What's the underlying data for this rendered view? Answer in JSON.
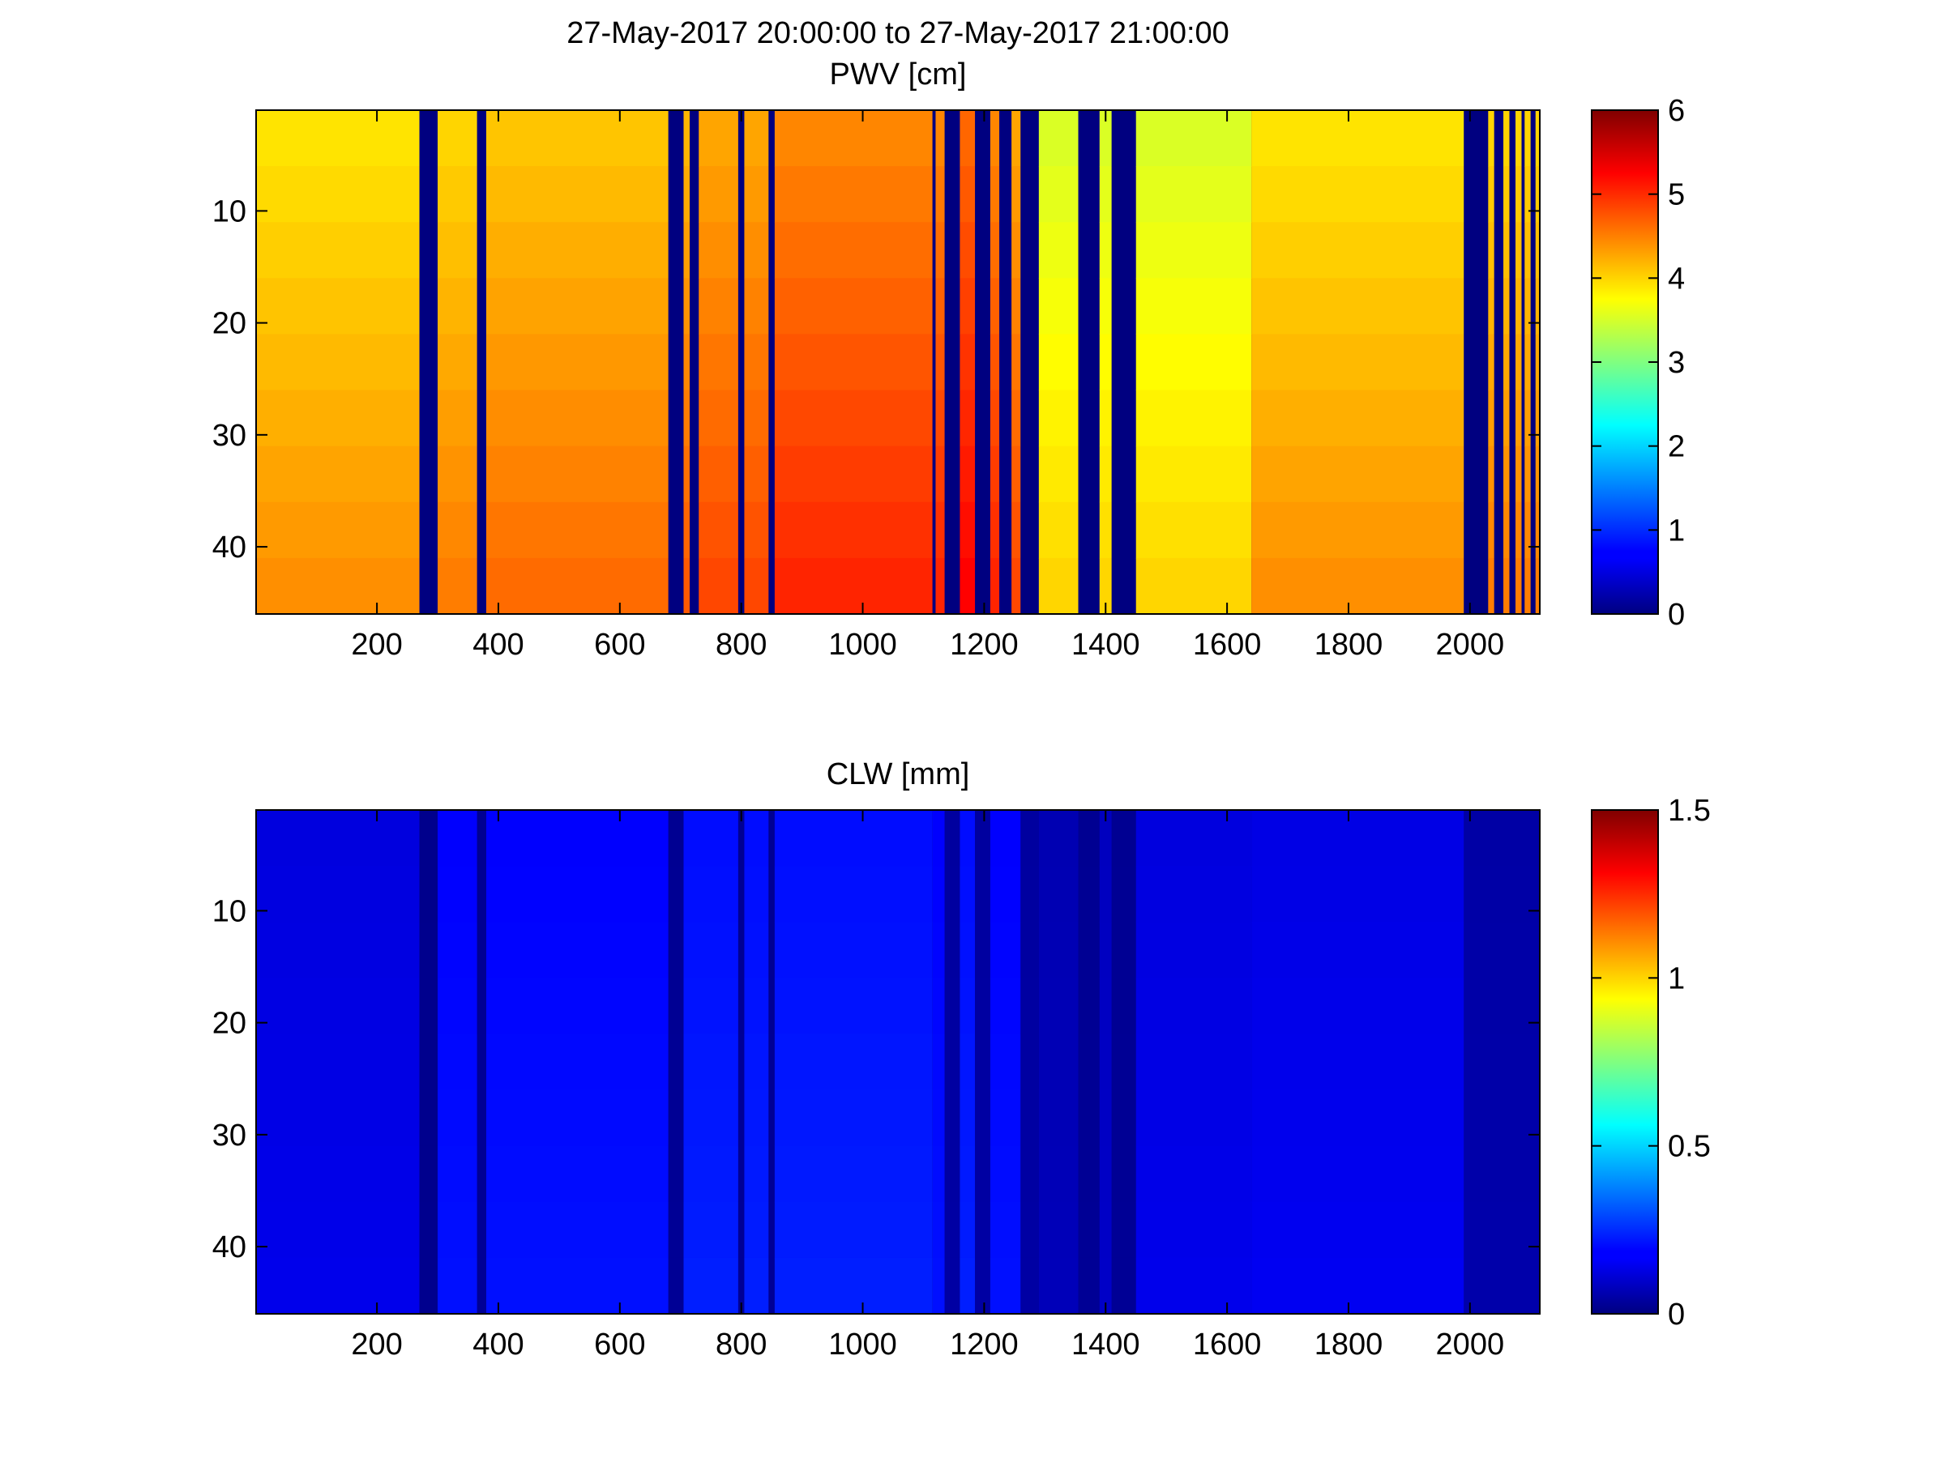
{
  "figure": {
    "title": "27-May-2017 20:00:00 to 27-May-2017 21:00:00"
  },
  "chart_data": [
    {
      "type": "heatmap",
      "title": "PWV [cm]",
      "xlabel": "",
      "ylabel": "",
      "xlim": [
        1,
        2115
      ],
      "ylim": [
        1,
        46
      ],
      "y_reversed": true,
      "x_ticks": [
        200,
        400,
        600,
        800,
        1000,
        1200,
        1400,
        1600,
        1800,
        2000
      ],
      "y_ticks": [
        10,
        20,
        30,
        40
      ],
      "colorbar": {
        "colormap": "jet",
        "range": [
          0,
          6
        ],
        "ticks": [
          0,
          1,
          2,
          3,
          4,
          5,
          6
        ]
      },
      "column_profile": [
        {
          "x_start": 1,
          "x_end": 270,
          "value": 4.2
        },
        {
          "x_start": 270,
          "x_end": 300,
          "value": 0
        },
        {
          "x_start": 300,
          "x_end": 365,
          "value": 4.3
        },
        {
          "x_start": 365,
          "x_end": 380,
          "value": 0
        },
        {
          "x_start": 380,
          "x_end": 680,
          "value": 4.4
        },
        {
          "x_start": 680,
          "x_end": 705,
          "value": 0
        },
        {
          "x_start": 705,
          "x_end": 715,
          "value": 4.5
        },
        {
          "x_start": 715,
          "x_end": 730,
          "value": 0
        },
        {
          "x_start": 730,
          "x_end": 795,
          "value": 4.6
        },
        {
          "x_start": 795,
          "x_end": 805,
          "value": 0
        },
        {
          "x_start": 805,
          "x_end": 845,
          "value": 4.6
        },
        {
          "x_start": 845,
          "x_end": 855,
          "value": 0
        },
        {
          "x_start": 855,
          "x_end": 1115,
          "value": 4.8
        },
        {
          "x_start": 1115,
          "x_end": 1120,
          "value": 0
        },
        {
          "x_start": 1120,
          "x_end": 1135,
          "value": 4.8
        },
        {
          "x_start": 1135,
          "x_end": 1160,
          "value": 0
        },
        {
          "x_start": 1160,
          "x_end": 1185,
          "value": 5.0
        },
        {
          "x_start": 1185,
          "x_end": 1210,
          "value": 0
        },
        {
          "x_start": 1210,
          "x_end": 1225,
          "value": 4.8
        },
        {
          "x_start": 1225,
          "x_end": 1245,
          "value": 0
        },
        {
          "x_start": 1245,
          "x_end": 1260,
          "value": 4.6
        },
        {
          "x_start": 1260,
          "x_end": 1290,
          "value": 0
        },
        {
          "x_start": 1290,
          "x_end": 1355,
          "value": 3.8
        },
        {
          "x_start": 1355,
          "x_end": 1390,
          "value": 0
        },
        {
          "x_start": 1390,
          "x_end": 1410,
          "value": 3.8
        },
        {
          "x_start": 1410,
          "x_end": 1450,
          "value": 0
        },
        {
          "x_start": 1450,
          "x_end": 1640,
          "value": 3.8
        },
        {
          "x_start": 1640,
          "x_end": 1990,
          "value": 4.2
        },
        {
          "x_start": 1990,
          "x_end": 2030,
          "value": 0
        },
        {
          "x_start": 2030,
          "x_end": 2040,
          "value": 4.3
        },
        {
          "x_start": 2040,
          "x_end": 2055,
          "value": 0
        },
        {
          "x_start": 2055,
          "x_end": 2065,
          "value": 4.3
        },
        {
          "x_start": 2065,
          "x_end": 2075,
          "value": 0
        },
        {
          "x_start": 2075,
          "x_end": 2085,
          "value": 4.3
        },
        {
          "x_start": 2085,
          "x_end": 2090,
          "value": 0
        },
        {
          "x_start": 2090,
          "x_end": 2100,
          "value": 4.3
        },
        {
          "x_start": 2100,
          "x_end": 2108,
          "value": 0
        },
        {
          "x_start": 2108,
          "x_end": 2115,
          "value": 4.3
        }
      ]
    },
    {
      "type": "heatmap",
      "title": "CLW [mm]",
      "xlabel": "",
      "ylabel": "",
      "xlim": [
        1,
        2115
      ],
      "ylim": [
        1,
        46
      ],
      "y_reversed": true,
      "x_ticks": [
        200,
        400,
        600,
        800,
        1000,
        1200,
        1400,
        1600,
        1800,
        2000
      ],
      "y_ticks": [
        10,
        20,
        30,
        40
      ],
      "colorbar": {
        "colormap": "jet",
        "range": [
          0,
          1.5
        ],
        "ticks": [
          0,
          0.5,
          1,
          1.5
        ],
        "tick_labels": [
          "0",
          "0.5",
          "1",
          "1.5"
        ]
      },
      "column_profile": [
        {
          "x_start": 1,
          "x_end": 270,
          "value": 0.15
        },
        {
          "x_start": 270,
          "x_end": 300,
          "value": 0.02
        },
        {
          "x_start": 300,
          "x_end": 365,
          "value": 0.2
        },
        {
          "x_start": 365,
          "x_end": 380,
          "value": 0.03
        },
        {
          "x_start": 380,
          "x_end": 680,
          "value": 0.2
        },
        {
          "x_start": 680,
          "x_end": 705,
          "value": 0.03
        },
        {
          "x_start": 705,
          "x_end": 795,
          "value": 0.22
        },
        {
          "x_start": 795,
          "x_end": 805,
          "value": 0.03
        },
        {
          "x_start": 805,
          "x_end": 845,
          "value": 0.22
        },
        {
          "x_start": 845,
          "x_end": 855,
          "value": 0.03
        },
        {
          "x_start": 855,
          "x_end": 1115,
          "value": 0.22
        },
        {
          "x_start": 1115,
          "x_end": 1135,
          "value": 0.2
        },
        {
          "x_start": 1135,
          "x_end": 1160,
          "value": 0.05
        },
        {
          "x_start": 1160,
          "x_end": 1185,
          "value": 0.22
        },
        {
          "x_start": 1185,
          "x_end": 1210,
          "value": 0.05
        },
        {
          "x_start": 1210,
          "x_end": 1260,
          "value": 0.2
        },
        {
          "x_start": 1260,
          "x_end": 1290,
          "value": 0.05
        },
        {
          "x_start": 1290,
          "x_end": 1355,
          "value": 0.08
        },
        {
          "x_start": 1355,
          "x_end": 1390,
          "value": 0.03
        },
        {
          "x_start": 1390,
          "x_end": 1410,
          "value": 0.1
        },
        {
          "x_start": 1410,
          "x_end": 1450,
          "value": 0.03
        },
        {
          "x_start": 1450,
          "x_end": 1640,
          "value": 0.15
        },
        {
          "x_start": 1640,
          "x_end": 1990,
          "value": 0.16
        },
        {
          "x_start": 1990,
          "x_end": 2115,
          "value": 0.06
        }
      ]
    }
  ]
}
